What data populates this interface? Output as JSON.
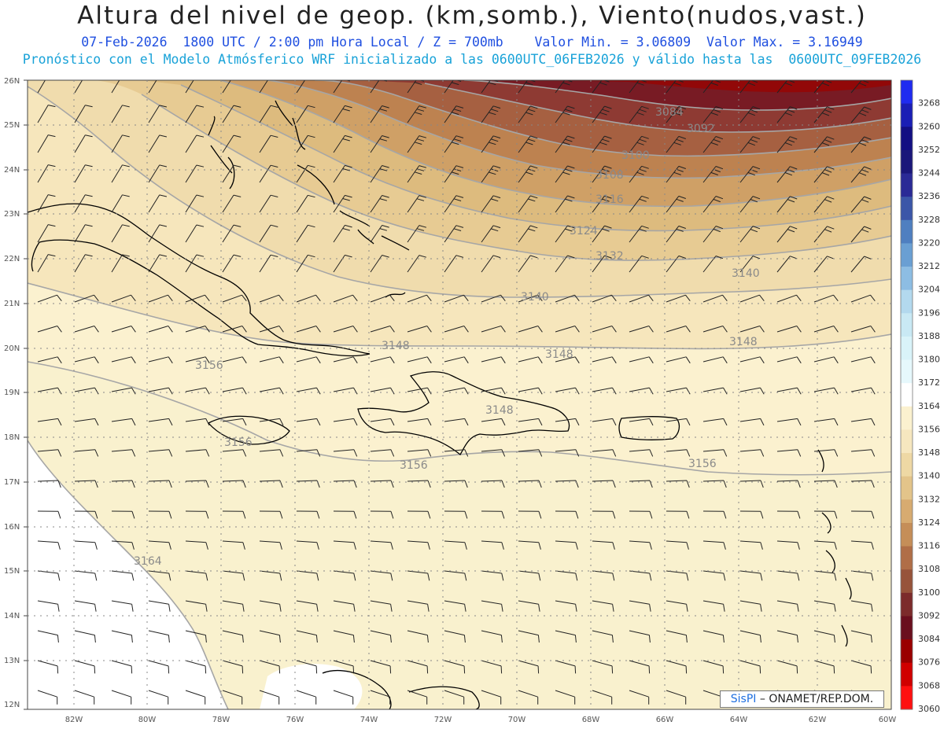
{
  "header": {
    "title": "Altura del nivel de geop. (km,somb.), Viento(nudos,vast.)",
    "subtitle_date": "07-Feb-2026",
    "subtitle_time": "1800 UTC / 2:00 pm Hora Local / Z = 700mb",
    "subtitle_min": "Valor Min. = 3.06809",
    "subtitle_max": "Valor Max. = 3.16949",
    "subtitle_model": "Pronóstico con el Modelo Atmósferico WRF inicializado a las 0600UTC_06FEB2026 y válido hasta las  0600UTC_09FEB2026"
  },
  "axes": {
    "lat_labels": [
      "26N",
      "25N",
      "24N",
      "23N",
      "22N",
      "21N",
      "20N",
      "19N",
      "18N",
      "17N",
      "16N",
      "15N",
      "14N",
      "13N",
      "12N"
    ],
    "lon_labels": [
      "82W",
      "80W",
      "78W",
      "76W",
      "74W",
      "72W",
      "70W",
      "68W",
      "66W",
      "64W",
      "62W",
      "60W"
    ]
  },
  "contour_labels": [
    "3084",
    "3092",
    "3100",
    "3108",
    "3116",
    "3124",
    "3132",
    "3140",
    "3140",
    "3148",
    "3148",
    "3148",
    "3148",
    "3156",
    "3156",
    "3156",
    "3156",
    "3164"
  ],
  "colorbar": {
    "levels": [
      "3268",
      "3260",
      "3252",
      "3244",
      "3236",
      "3228",
      "3220",
      "3212",
      "3204",
      "3196",
      "3188",
      "3180",
      "3172",
      "3164",
      "3156",
      "3148",
      "3140",
      "3132",
      "3124",
      "3116",
      "3108",
      "3100",
      "3092",
      "3084",
      "3076",
      "3068",
      "3060"
    ],
    "colors": [
      "#1f2bf0",
      "#1a1eb5",
      "#130f83",
      "#1a177a",
      "#2a2a96",
      "#3b56a8",
      "#4f7fc0",
      "#6a9fd3",
      "#8dbde3",
      "#b3d9ee",
      "#c9e9f4",
      "#d9f3f9",
      "#e6f8fc",
      "#ffffff",
      "#fbf1cf",
      "#f6e7bf",
      "#eed8a4",
      "#e3c48a",
      "#d7ab70",
      "#c58e58",
      "#b06e47",
      "#97533a",
      "#7c2b2b",
      "#6a0f1e",
      "#9a0000",
      "#d00000",
      "#ff1010"
    ]
  },
  "credit": {
    "logo": "SisPI",
    "text": "ONAMET/REP.DOM."
  }
}
